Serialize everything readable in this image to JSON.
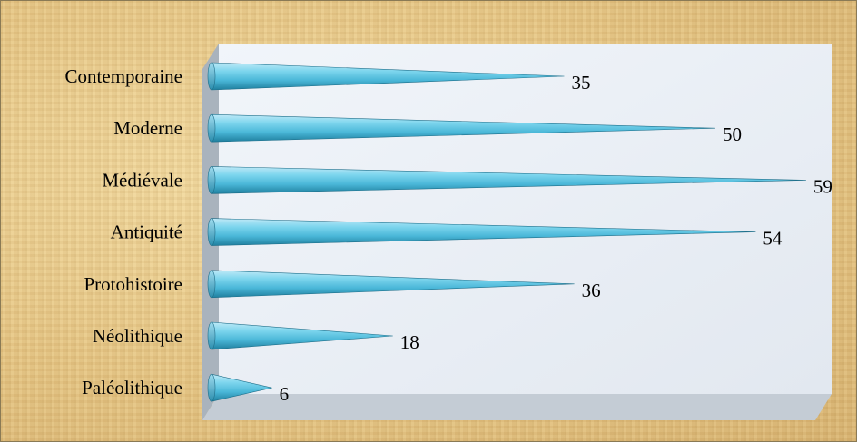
{
  "chart_data": {
    "type": "bar",
    "orientation": "horizontal",
    "style": "3d-cone",
    "categories": [
      "Contemporaine",
      "Moderne",
      "Médiévale",
      "Antiquité",
      "Protohistoire",
      "Néolithique",
      "Paléolithique"
    ],
    "values": [
      35,
      50,
      59,
      54,
      36,
      18,
      6
    ],
    "title": "",
    "xlabel": "",
    "ylabel": "",
    "xlim": [
      0,
      60
    ],
    "grid": false,
    "legend": "none",
    "colors": {
      "bar_light": "#bfe9f7",
      "bar_mid": "#5cc3e0",
      "bar_dark": "#1f7f9e",
      "plot_back": "#e9eef5",
      "plot_side": "#a9b3bd",
      "plot_floor": "#c4ccd5"
    }
  }
}
